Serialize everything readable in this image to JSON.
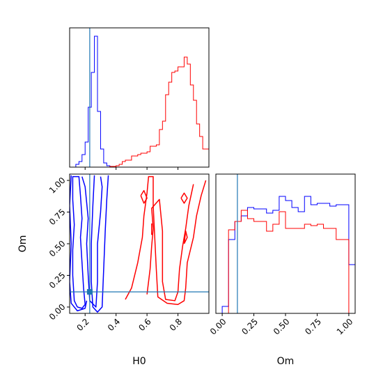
{
  "chart_data": {
    "type": "corner",
    "parameters": [
      "H0",
      "Om"
    ],
    "truth": {
      "H0": 0.23,
      "Om": 0.12
    },
    "colors": {
      "series_a": "#0000ff",
      "series_b": "#ff0000",
      "truth": "#1f77b4"
    },
    "panels": [
      {
        "id": "hist-H0",
        "type": "histogram",
        "xlim": [
          0.1,
          1.0
        ],
        "xticks": [
          0.2,
          0.4,
          0.6,
          0.8
        ],
        "tick_labels_shown": false,
        "bin_edges": [
          0.1,
          0.12,
          0.14,
          0.16,
          0.18,
          0.2,
          0.22,
          0.24,
          0.26,
          0.28,
          0.3,
          0.32,
          0.34,
          0.36,
          0.38,
          0.4,
          0.42,
          0.44,
          0.46,
          0.48,
          0.5,
          0.52,
          0.54,
          0.56,
          0.58,
          0.6,
          0.62,
          0.64,
          0.66,
          0.68,
          0.7,
          0.72,
          0.74,
          0.76,
          0.78,
          0.8,
          0.82,
          0.84,
          0.86,
          0.88,
          0.9,
          0.92,
          0.94,
          0.96,
          0.98,
          1.0
        ],
        "series": [
          {
            "color_key": "series_a",
            "counts": [
              0.0,
              0.0,
              0.02,
              0.04,
              0.09,
              0.18,
              0.43,
              0.68,
              0.94,
              0.4,
              0.13,
              0.03,
              0.01,
              0,
              0,
              0,
              0,
              0,
              0,
              0,
              0,
              0,
              0,
              0,
              0,
              0,
              0,
              0,
              0,
              0,
              0,
              0,
              0,
              0,
              0,
              0,
              0,
              0,
              0,
              0,
              0,
              0,
              0,
              0,
              0
            ]
          },
          {
            "color_key": "series_b",
            "counts": [
              0,
              0,
              0,
              0,
              0,
              0,
              0,
              0,
              0,
              0,
              0,
              0,
              0,
              0.005,
              0.005,
              0.01,
              0.02,
              0.04,
              0.05,
              0.05,
              0.08,
              0.08,
              0.09,
              0.1,
              0.1,
              0.11,
              0.15,
              0.15,
              0.16,
              0.27,
              0.33,
              0.52,
              0.61,
              0.68,
              0.69,
              0.72,
              0.72,
              0.79,
              0.74,
              0.59,
              0.48,
              0.31,
              0.22,
              0.13,
              0.13
            ]
          }
        ]
      },
      {
        "id": "hist-Om",
        "type": "histogram",
        "xlim": [
          -0.05,
          1.05
        ],
        "xticks": [
          0.0,
          0.25,
          0.5,
          0.75,
          1.0
        ],
        "xtick_labels": [
          "0.00",
          "0.25",
          "0.50",
          "0.75",
          "1.00"
        ],
        "xlabel": "Om",
        "bin_edges": [
          -0.05,
          0.0,
          0.05,
          0.1,
          0.15,
          0.2,
          0.25,
          0.3,
          0.35,
          0.4,
          0.45,
          0.5,
          0.55,
          0.6,
          0.65,
          0.7,
          0.75,
          0.8,
          0.85,
          0.9,
          0.95,
          1.0,
          1.05
        ],
        "series": [
          {
            "color_key": "series_a",
            "counts": [
              0.0,
              0.05,
              0.53,
              0.66,
              0.7,
              0.76,
              0.75,
              0.75,
              0.72,
              0.74,
              0.84,
              0.81,
              0.76,
              0.73,
              0.84,
              0.78,
              0.79,
              0.79,
              0.77,
              0.78,
              0.78,
              0.35
            ]
          },
          {
            "color_key": "series_b",
            "counts": [
              0.0,
              0.0,
              0.6,
              0.66,
              0.74,
              0.68,
              0.66,
              0.66,
              0.59,
              0.64,
              0.73,
              0.61,
              0.61,
              0.61,
              0.64,
              0.63,
              0.64,
              0.61,
              0.61,
              0.53,
              0.53,
              0.0
            ]
          }
        ]
      },
      {
        "id": "contour-H0-Om",
        "type": "contour",
        "xlim": [
          0.1,
          1.0
        ],
        "ylim": [
          -0.05,
          1.05
        ],
        "xticks": [
          0.2,
          0.4,
          0.6,
          0.8
        ],
        "xtick_labels": [
          "0.2",
          "0.4",
          "0.6",
          "0.8"
        ],
        "yticks": [
          0.0,
          0.25,
          0.5,
          0.75,
          1.0
        ],
        "ytick_labels": [
          "0.00",
          "0.25",
          "0.50",
          "0.75",
          "1.00"
        ],
        "xlabel": "H0",
        "ylabel": "Om",
        "contours": [
          {
            "color_key": "series_a",
            "points": [
              [
                0.15,
                0.0
              ],
              [
                0.18,
                -0.01
              ],
              [
                0.2,
                0.02
              ],
              [
                0.19,
                0.15
              ],
              [
                0.18,
                0.35
              ],
              [
                0.17,
                0.55
              ],
              [
                0.18,
                0.7
              ],
              [
                0.17,
                0.88
              ],
              [
                0.16,
                1.03
              ],
              [
                0.12,
                1.03
              ],
              [
                0.12,
                0.85
              ],
              [
                0.13,
                0.65
              ],
              [
                0.12,
                0.45
              ],
              [
                0.12,
                0.25
              ],
              [
                0.13,
                0.05
              ],
              [
                0.15,
                0.0
              ]
            ]
          },
          {
            "color_key": "series_a",
            "points": [
              [
                0.18,
                1.03
              ],
              [
                0.2,
                0.95
              ],
              [
                0.22,
                0.7
              ],
              [
                0.21,
                0.5
              ],
              [
                0.22,
                0.25
              ],
              [
                0.23,
                0.05
              ],
              [
                0.27,
                0.0
              ],
              [
                0.28,
                0.2
              ],
              [
                0.28,
                0.5
              ],
              [
                0.3,
                0.75
              ],
              [
                0.31,
                0.95
              ],
              [
                0.3,
                1.03
              ]
            ]
          },
          {
            "color_key": "series_a",
            "points": [
              [
                0.11,
                1.04
              ],
              [
                0.1,
                0.8
              ],
              [
                0.11,
                0.5
              ],
              [
                0.1,
                0.2
              ],
              [
                0.11,
                0.03
              ],
              [
                0.15,
                -0.03
              ],
              [
                0.2,
                -0.01
              ],
              [
                0.21,
                0.05
              ]
            ]
          },
          {
            "color_key": "series_a",
            "points": [
              [
                0.26,
                1.04
              ],
              [
                0.25,
                0.8
              ],
              [
                0.24,
                0.5
              ],
              [
                0.24,
                0.2
              ],
              [
                0.25,
                0.0
              ],
              [
                0.28,
                -0.04
              ],
              [
                0.31,
                0.0
              ],
              [
                0.32,
                0.3
              ],
              [
                0.33,
                0.6
              ],
              [
                0.34,
                0.85
              ],
              [
                0.35,
                1.04
              ]
            ]
          },
          {
            "color_key": "series_b",
            "points": [
              [
                0.46,
                0.06
              ],
              [
                0.5,
                0.15
              ],
              [
                0.54,
                0.35
              ],
              [
                0.57,
                0.55
              ],
              [
                0.58,
                0.72
              ],
              [
                0.6,
                0.9
              ],
              [
                0.61,
                1.03
              ],
              [
                0.64,
                1.03
              ],
              [
                0.64,
                0.8
              ],
              [
                0.65,
                0.55
              ],
              [
                0.66,
                0.3
              ],
              [
                0.67,
                0.08
              ],
              [
                0.73,
                0.03
              ],
              [
                0.8,
                0.02
              ],
              [
                0.84,
                0.05
              ],
              [
                0.85,
                0.15
              ],
              [
                0.86,
                0.35
              ],
              [
                0.9,
                0.55
              ],
              [
                0.92,
                0.72
              ],
              [
                0.95,
                0.88
              ],
              [
                0.98,
                1.0
              ]
            ]
          },
          {
            "color_key": "series_b",
            "points": [
              [
                0.6,
                0.1
              ],
              [
                0.62,
                0.3
              ],
              [
                0.63,
                0.48
              ],
              [
                0.64,
                0.62
              ],
              [
                0.63,
                0.78
              ],
              [
                0.68,
                0.85
              ],
              [
                0.7,
                0.6
              ],
              [
                0.7,
                0.4
              ],
              [
                0.7,
                0.2
              ],
              [
                0.72,
                0.06
              ],
              [
                0.78,
                0.05
              ],
              [
                0.8,
                0.12
              ],
              [
                0.81,
                0.3
              ],
              [
                0.83,
                0.48
              ],
              [
                0.85,
                0.62
              ],
              [
                0.87,
                0.8
              ],
              [
                0.9,
                0.97
              ]
            ]
          },
          {
            "color_key": "series_b",
            "points": [
              [
                0.56,
                0.88
              ],
              [
                0.58,
                0.82
              ],
              [
                0.6,
                0.86
              ],
              [
                0.58,
                0.92
              ],
              [
                0.56,
                0.88
              ]
            ]
          },
          {
            "color_key": "series_b",
            "points": [
              [
                0.63,
                0.57
              ],
              [
                0.63,
                0.66
              ]
            ]
          },
          {
            "color_key": "series_b",
            "points": [
              [
                0.84,
                0.5
              ],
              [
                0.86,
                0.55
              ],
              [
                0.85,
                0.6
              ],
              [
                0.84,
                0.5
              ]
            ]
          },
          {
            "color_key": "series_b",
            "points": [
              [
                0.82,
                0.86
              ],
              [
                0.84,
                0.82
              ],
              [
                0.86,
                0.86
              ],
              [
                0.84,
                0.9
              ],
              [
                0.82,
                0.86
              ]
            ]
          }
        ]
      }
    ]
  }
}
